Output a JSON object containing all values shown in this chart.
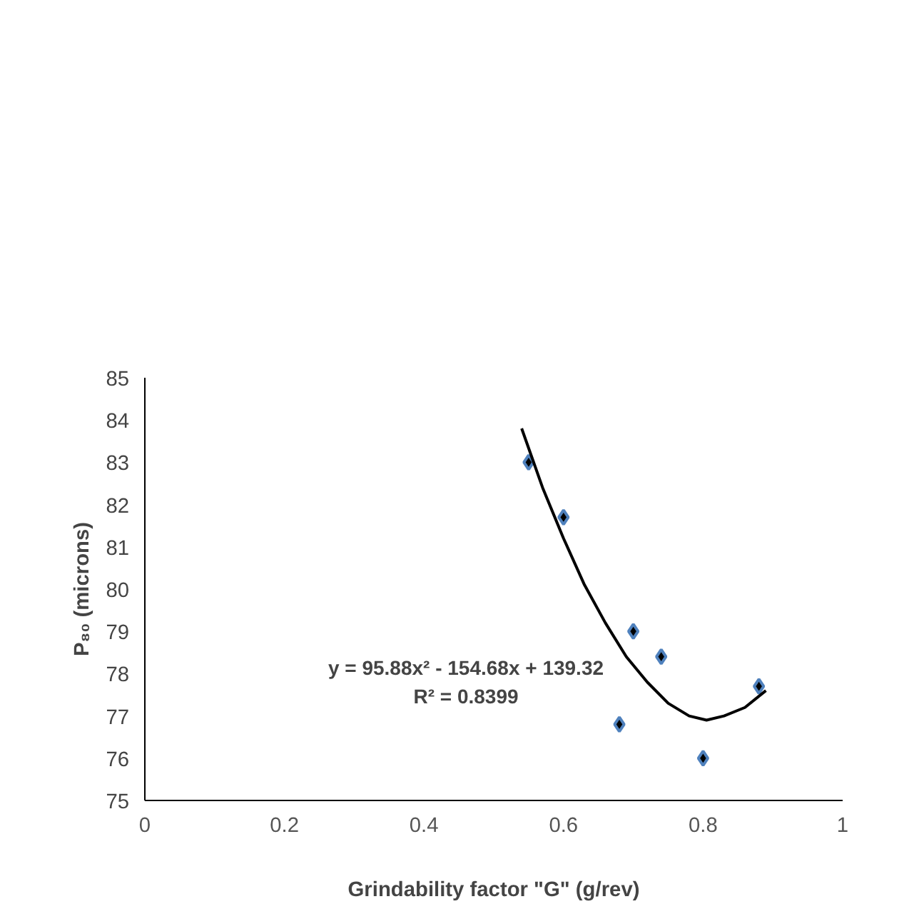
{
  "chart_data": {
    "type": "scatter",
    "xlabel": "Grindability factor \"G\" (g/rev)",
    "ylabel": "P₈₀ (microns)",
    "xlim": [
      0,
      1
    ],
    "xticks": [
      0,
      0.2,
      0.4,
      0.6,
      0.8,
      1
    ],
    "ylim": [
      75,
      85
    ],
    "yticks": [
      75,
      76,
      77,
      78,
      79,
      80,
      81,
      82,
      83,
      84,
      85
    ],
    "grid": false,
    "annotations": [
      "y = 95.88x² - 154.68x + 139.32",
      "R² = 0.8399"
    ],
    "series": [
      {
        "marker": "diamond",
        "color": "#000000",
        "x": [
          0.55,
          0.6,
          0.68,
          0.7,
          0.74,
          0.8,
          0.88
        ],
        "values": [
          83.0,
          81.7,
          76.8,
          79.0,
          78.4,
          76.0,
          77.7
        ]
      },
      {
        "type": "line",
        "color": "#000000",
        "line_style": "solid",
        "x": [
          0.54,
          0.57,
          0.6,
          0.63,
          0.66,
          0.69,
          0.72,
          0.75,
          0.78,
          0.805,
          0.83,
          0.86,
          0.89
        ],
        "values": [
          83.8,
          82.4,
          81.2,
          80.1,
          79.2,
          78.4,
          77.8,
          77.3,
          77.0,
          76.9,
          77.0,
          77.2,
          77.6
        ]
      }
    ]
  }
}
